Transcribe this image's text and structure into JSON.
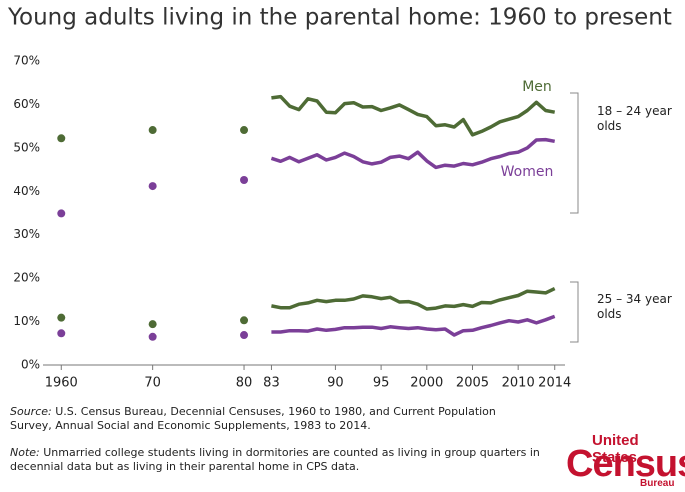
{
  "chart_data": {
    "type": "line",
    "title": "Young adults living in the parental home: 1960 to present",
    "decennial_x": [
      1960,
      1970,
      1980
    ],
    "x": [
      1983,
      1984,
      1985,
      1986,
      1987,
      1988,
      1989,
      1990,
      1991,
      1992,
      1993,
      1994,
      1995,
      1996,
      1997,
      1998,
      1999,
      2000,
      2001,
      2002,
      2003,
      2004,
      2005,
      2006,
      2007,
      2008,
      2009,
      2010,
      2011,
      2012,
      2013,
      2014
    ],
    "series": [
      {
        "name": "Men",
        "color": "#4e6b35",
        "decennial_values": [
          52.2,
          54.1,
          54.1
        ],
        "values": [
          61.5,
          61.8,
          59.6,
          58.8,
          61.3,
          60.8,
          58.2,
          58.1,
          60.2,
          60.4,
          59.4,
          59.5,
          58.6,
          59.2,
          59.9,
          58.8,
          57.7,
          57.2,
          55.1,
          55.3,
          54.8,
          56.5,
          53.0,
          53.8,
          54.8,
          56.0,
          56.6,
          57.2,
          58.6,
          60.5,
          58.6,
          58.2
        ]
      },
      {
        "name": "Women",
        "color": "#7b3f98",
        "decennial_values": [
          34.9,
          41.2,
          42.6
        ],
        "values": [
          47.6,
          46.9,
          47.8,
          46.8,
          47.6,
          48.4,
          47.2,
          47.8,
          48.8,
          48.0,
          46.8,
          46.3,
          46.7,
          47.8,
          48.1,
          47.5,
          49.0,
          47.0,
          45.5,
          46.0,
          45.8,
          46.4,
          46.1,
          46.7,
          47.5,
          48.0,
          48.7,
          49.0,
          50.0,
          51.8,
          51.9,
          51.5
        ]
      },
      {
        "color": "#4e6b35",
        "decennial_values": [
          10.9,
          9.4,
          10.3
        ],
        "values": [
          13.6,
          13.2,
          13.2,
          14.0,
          14.3,
          14.9,
          14.6,
          14.9,
          14.9,
          15.2,
          15.9,
          15.7,
          15.3,
          15.6,
          14.5,
          14.6,
          14.0,
          12.9,
          13.1,
          13.6,
          13.5,
          13.9,
          13.5,
          14.4,
          14.3,
          15.0,
          15.5,
          16.0,
          17.0,
          16.8,
          16.6,
          17.6
        ]
      },
      {
        "color": "#7b3f98",
        "decennial_values": [
          7.3,
          6.5,
          6.9
        ],
        "values": [
          7.6,
          7.6,
          7.9,
          7.9,
          7.8,
          8.3,
          8.0,
          8.2,
          8.6,
          8.6,
          8.7,
          8.7,
          8.4,
          8.8,
          8.6,
          8.4,
          8.6,
          8.3,
          8.1,
          8.3,
          6.9,
          7.9,
          8.0,
          8.6,
          9.1,
          9.7,
          10.2,
          9.9,
          10.4,
          9.7,
          10.4,
          11.2
        ]
      }
    ],
    "groups": [
      "18 – 24 year olds",
      "25 – 34 year olds"
    ],
    "xlim": [
      1958,
      2016
    ],
    "xticks": [
      1960,
      {
        "value": 1970,
        "label": "70"
      },
      {
        "value": 1980,
        "label": "80"
      },
      {
        "value": 1983,
        "label": "83"
      },
      {
        "value": 1990,
        "label": "90"
      },
      {
        "value": 1995,
        "label": "95"
      },
      2000,
      2005,
      2010,
      2014
    ],
    "ylim": [
      0,
      70
    ],
    "yticks": [
      {
        "value": 0,
        "label": "0%"
      },
      {
        "value": 10,
        "label": "10%"
      },
      {
        "value": 20,
        "label": "20%"
      },
      {
        "value": 30,
        "label": "30%"
      },
      {
        "value": 40,
        "label": "40%"
      },
      {
        "value": 50,
        "label": "50%"
      },
      {
        "value": 60,
        "label": "60%"
      },
      {
        "value": 70,
        "label": "70%"
      }
    ],
    "grid": false,
    "source_label": "Source:",
    "source": "U.S. Census Bureau, Decennial Censuses, 1960 to 1980, and Current Population Survey, Annual Social and Economic Supplements, 1983 to 2014.",
    "note_label": "Note:",
    "note": "Unmarried college students living in dormitories are counted as living in group quarters in decennial data but as living in their parental home in CPS data.",
    "logo": {
      "top": "United States",
      "main": "Census",
      "bottom": "Bureau"
    }
  }
}
